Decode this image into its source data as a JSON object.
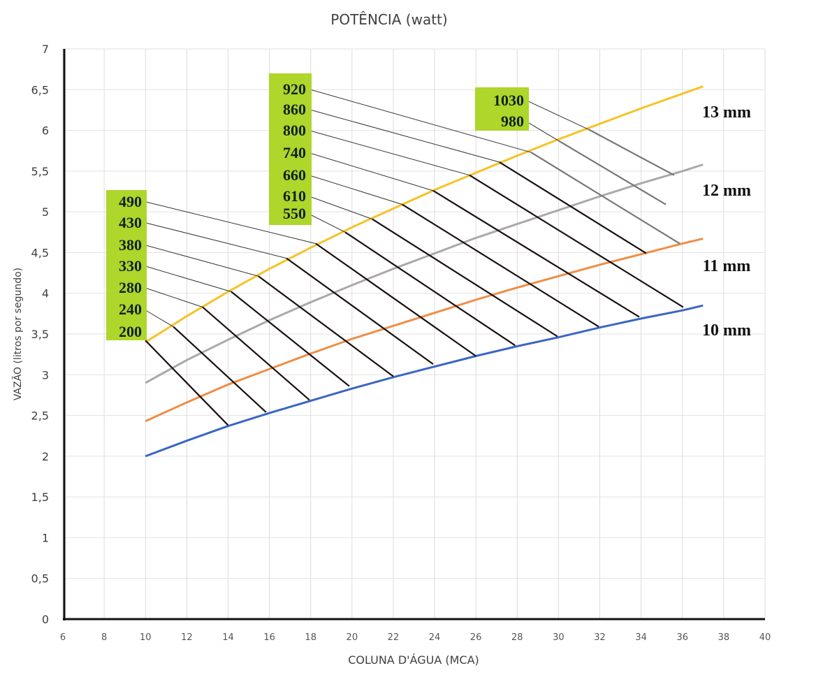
{
  "chart_data": {
    "type": "line",
    "title": "POTÊNCIA (watt)",
    "xlabel": "COLUNA D'ÁGUA (MCA)",
    "ylabel": "VAZÃO (litros por segundo)",
    "xlim": [
      6,
      40
    ],
    "ylim": [
      0,
      7
    ],
    "grid": true,
    "x_ticks": [
      "6",
      "8",
      "10",
      "12",
      "14",
      "16",
      "18",
      "20",
      "22",
      "24",
      "26",
      "28",
      "30",
      "32",
      "34",
      "36",
      "38",
      "40"
    ],
    "y_ticks": [
      "0",
      "0,5",
      "1",
      "1,5",
      "2",
      "2,5",
      "3",
      "3,5",
      "4",
      "4,5",
      "5",
      "5,5",
      "6",
      "6,5",
      "7"
    ],
    "x": [
      10,
      12,
      14,
      16,
      18,
      20,
      22,
      24,
      26,
      28,
      30,
      32,
      34,
      36,
      37
    ],
    "series": [
      {
        "name": "10 mm",
        "color": "#3a66c4",
        "values": [
          2.0,
          2.19,
          2.37,
          2.53,
          2.68,
          2.83,
          2.97,
          3.1,
          3.23,
          3.35,
          3.46,
          3.58,
          3.69,
          3.79,
          3.85
        ]
      },
      {
        "name": "11 mm",
        "color": "#ef8d45",
        "values": [
          2.43,
          2.66,
          2.88,
          3.07,
          3.26,
          3.44,
          3.6,
          3.76,
          3.92,
          4.07,
          4.21,
          4.35,
          4.48,
          4.61,
          4.67
        ]
      },
      {
        "name": "12 mm",
        "color": "#a9a9a9",
        "values": [
          2.9,
          3.18,
          3.43,
          3.67,
          3.89,
          4.1,
          4.3,
          4.49,
          4.68,
          4.85,
          5.02,
          5.19,
          5.35,
          5.5,
          5.58
        ]
      },
      {
        "name": "13 mm",
        "color": "#f6c325",
        "values": [
          3.4,
          3.72,
          4.02,
          4.3,
          4.56,
          4.81,
          5.04,
          5.27,
          5.48,
          5.69,
          5.89,
          6.08,
          6.27,
          6.45,
          6.54
        ]
      }
    ],
    "power_lines": [
      {
        "label": "200",
        "group": 0,
        "color": "#1a1010",
        "start": [
          10.0,
          3.42
        ],
        "end": [
          14.0,
          2.38
        ]
      },
      {
        "label": "240",
        "group": 0,
        "color": "#1a1010",
        "start": [
          11.35,
          3.59
        ],
        "end": [
          15.84,
          2.54
        ]
      },
      {
        "label": "280",
        "group": 0,
        "color": "#1a1010",
        "start": [
          12.77,
          3.83
        ],
        "end": [
          17.94,
          2.69
        ]
      },
      {
        "label": "330",
        "group": 0,
        "color": "#1a1010",
        "start": [
          14.15,
          4.02
        ],
        "end": [
          19.87,
          2.86
        ]
      },
      {
        "label": "380",
        "group": 0,
        "color": "#1a1010",
        "start": [
          15.47,
          4.21
        ],
        "end": [
          22.0,
          2.98
        ]
      },
      {
        "label": "430",
        "group": 0,
        "color": "#1a1010",
        "start": [
          16.83,
          4.43
        ],
        "end": [
          23.93,
          3.13
        ]
      },
      {
        "label": "490",
        "group": 0,
        "color": "#1a1010",
        "start": [
          18.25,
          4.61
        ],
        "end": [
          26.0,
          3.23
        ]
      },
      {
        "label": "550",
        "group": 1,
        "color": "#1a1010",
        "start": [
          19.67,
          4.75
        ],
        "end": [
          27.9,
          3.36
        ]
      },
      {
        "label": "610",
        "group": 1,
        "color": "#1a1010",
        "start": [
          20.99,
          4.91
        ],
        "end": [
          29.95,
          3.47
        ]
      },
      {
        "label": "660",
        "group": 1,
        "color": "#1a1010",
        "start": [
          22.44,
          5.09
        ],
        "end": [
          31.95,
          3.59
        ]
      },
      {
        "label": "740",
        "group": 1,
        "color": "#1a1010",
        "start": [
          23.93,
          5.26
        ],
        "end": [
          33.91,
          3.71
        ]
      },
      {
        "label": "800",
        "group": 1,
        "color": "#1a1010",
        "start": [
          25.69,
          5.45
        ],
        "end": [
          36.04,
          3.83
        ]
      },
      {
        "label": "860",
        "group": 1,
        "color": "#1a1010",
        "start": [
          27.14,
          5.61
        ],
        "end": [
          34.25,
          4.49
        ]
      },
      {
        "label": "920",
        "group": 1,
        "color": "#777777",
        "start": [
          28.67,
          5.73
        ],
        "end": [
          35.87,
          4.61
        ]
      },
      {
        "label": "980",
        "group": 2,
        "color": "#777777",
        "start": [
          30.02,
          5.87
        ],
        "end": [
          35.2,
          5.09
        ]
      },
      {
        "label": "1030",
        "group": 2,
        "color": "#777777",
        "start": [
          31.47,
          6.01
        ],
        "end": [
          35.6,
          5.45
        ]
      }
    ],
    "label_box_color": "#aed62b"
  }
}
